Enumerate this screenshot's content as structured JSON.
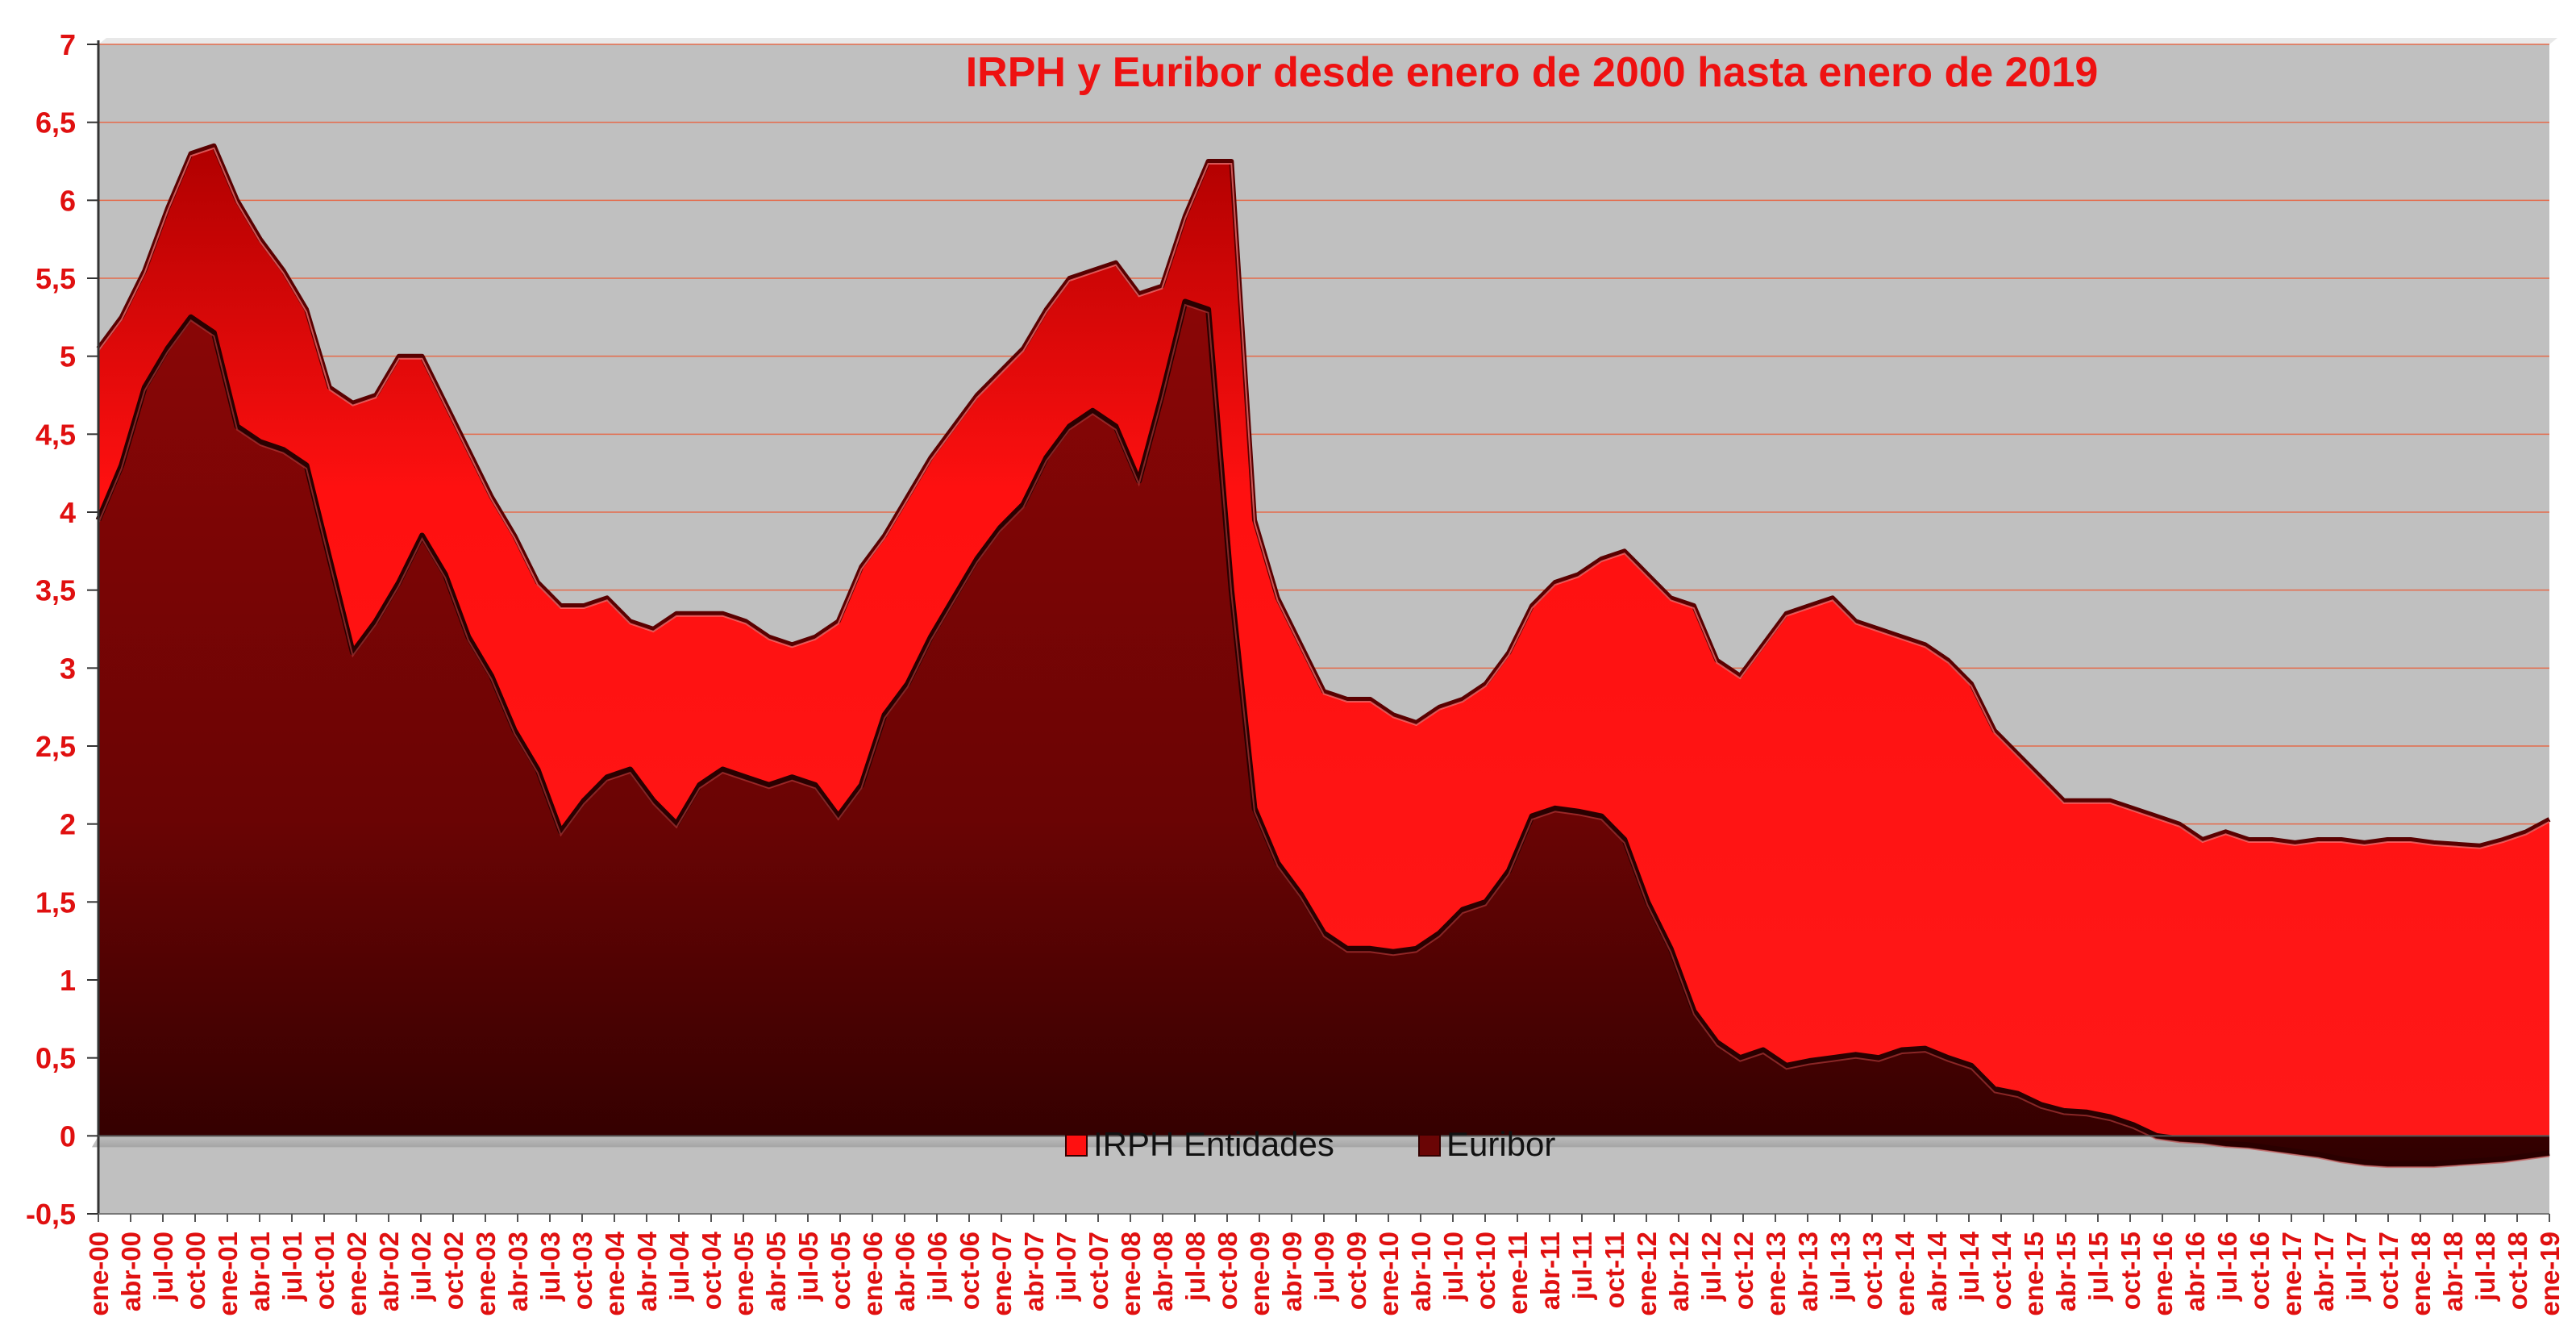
{
  "chart_data": {
    "type": "area",
    "title": "IRPH y Euribor desde enero de 2000 hasta enero de 2019",
    "xlabel": "",
    "ylabel": "",
    "ylim": [
      -0.5,
      7
    ],
    "y_ticks": [
      "-0,5",
      "0",
      "0,5",
      "1",
      "1,5",
      "2",
      "2,5",
      "3",
      "3,5",
      "4",
      "4,5",
      "5",
      "5,5",
      "6",
      "6,5",
      "7"
    ],
    "y_tick_values": [
      -0.5,
      0,
      0.5,
      1,
      1.5,
      2,
      2.5,
      3,
      3.5,
      4,
      4.5,
      5,
      5.5,
      6,
      6.5,
      7
    ],
    "grid": true,
    "legend_position": "bottom-center",
    "x_tick_labels": [
      "ene-00",
      "abr-00",
      "jul-00",
      "oct-00",
      "ene-01",
      "abr-01",
      "jul-01",
      "oct-01",
      "ene-02",
      "abr-02",
      "jul-02",
      "oct-02",
      "ene-03",
      "abr-03",
      "jul-03",
      "oct-03",
      "ene-04",
      "abr-04",
      "jul-04",
      "oct-04",
      "ene-05",
      "abr-05",
      "jul-05",
      "oct-05",
      "ene-06",
      "abr-06",
      "jul-06",
      "oct-06",
      "ene-07",
      "abr-07",
      "jul-07",
      "oct-07",
      "ene-08",
      "abr-08",
      "jul-08",
      "oct-08",
      "ene-09",
      "abr-09",
      "jul-09",
      "oct-09",
      "ene-10",
      "abr-10",
      "jul-10",
      "oct-10",
      "ene-11",
      "abr-11",
      "jul-11",
      "oct-11",
      "ene-12",
      "abr-12",
      "jul-12",
      "oct-12",
      "ene-13",
      "abr-13",
      "jul-13",
      "oct-13",
      "ene-14",
      "abr-14",
      "jul-14",
      "oct-14",
      "ene-15",
      "abr-15",
      "jul-15",
      "oct-15",
      "ene-16",
      "abr-16",
      "jul-16",
      "oct-16",
      "ene-17",
      "abr-17",
      "jul-17",
      "oct-17",
      "ene-18",
      "abr-18",
      "jul-18",
      "oct-18",
      "ene-19"
    ],
    "series": [
      {
        "name": "IRPH Entidades",
        "color": "#ff1010",
        "values": [
          5.05,
          5.25,
          5.55,
          5.95,
          6.3,
          6.35,
          6.0,
          5.75,
          5.55,
          5.3,
          4.8,
          4.7,
          4.75,
          5.0,
          5.0,
          4.7,
          4.4,
          4.1,
          3.85,
          3.55,
          3.4,
          3.4,
          3.45,
          3.3,
          3.25,
          3.35,
          3.35,
          3.35,
          3.3,
          3.2,
          3.15,
          3.2,
          3.3,
          3.65,
          3.85,
          4.1,
          4.35,
          4.55,
          4.75,
          4.9,
          5.05,
          5.3,
          5.5,
          5.55,
          5.6,
          5.4,
          5.45,
          5.9,
          6.25,
          6.25,
          3.95,
          3.45,
          3.15,
          2.85,
          2.8,
          2.8,
          2.7,
          2.65,
          2.75,
          2.8,
          2.9,
          3.1,
          3.4,
          3.55,
          3.6,
          3.7,
          3.75,
          3.6,
          3.45,
          3.4,
          3.05,
          2.95,
          3.15,
          3.35,
          3.4,
          3.45,
          3.3,
          3.25,
          3.2,
          3.15,
          3.05,
          2.9,
          2.6,
          2.45,
          2.3,
          2.15,
          2.15,
          2.15,
          2.1,
          2.05,
          2.0,
          1.9,
          1.95,
          1.9,
          1.9,
          1.88,
          1.9,
          1.9,
          1.88,
          1.9,
          1.9,
          1.88,
          1.87,
          1.86,
          1.9,
          1.95,
          2.03
        ]
      },
      {
        "name": "Euribor",
        "color": "#6a0505",
        "values": [
          3.95,
          4.3,
          4.8,
          5.05,
          5.25,
          5.15,
          4.55,
          4.45,
          4.4,
          4.3,
          3.7,
          3.1,
          3.3,
          3.55,
          3.85,
          3.6,
          3.2,
          2.95,
          2.6,
          2.35,
          1.95,
          2.15,
          2.3,
          2.35,
          2.15,
          2.0,
          2.25,
          2.35,
          2.3,
          2.25,
          2.3,
          2.25,
          2.05,
          2.25,
          2.7,
          2.9,
          3.2,
          3.45,
          3.7,
          3.9,
          4.05,
          4.35,
          4.55,
          4.65,
          4.55,
          4.2,
          4.75,
          5.35,
          5.3,
          3.5,
          2.1,
          1.75,
          1.55,
          1.3,
          1.2,
          1.2,
          1.18,
          1.2,
          1.3,
          1.45,
          1.5,
          1.7,
          2.05,
          2.1,
          2.08,
          2.05,
          1.9,
          1.5,
          1.2,
          0.8,
          0.6,
          0.5,
          0.55,
          0.45,
          0.48,
          0.5,
          0.52,
          0.5,
          0.55,
          0.56,
          0.5,
          0.45,
          0.3,
          0.27,
          0.2,
          0.16,
          0.15,
          0.12,
          0.07,
          0.0,
          -0.02,
          -0.03,
          -0.05,
          -0.06,
          -0.08,
          -0.1,
          -0.12,
          -0.15,
          -0.17,
          -0.18,
          -0.18,
          -0.18,
          -0.17,
          -0.16,
          -0.15,
          -0.13,
          -0.11
        ]
      }
    ]
  }
}
